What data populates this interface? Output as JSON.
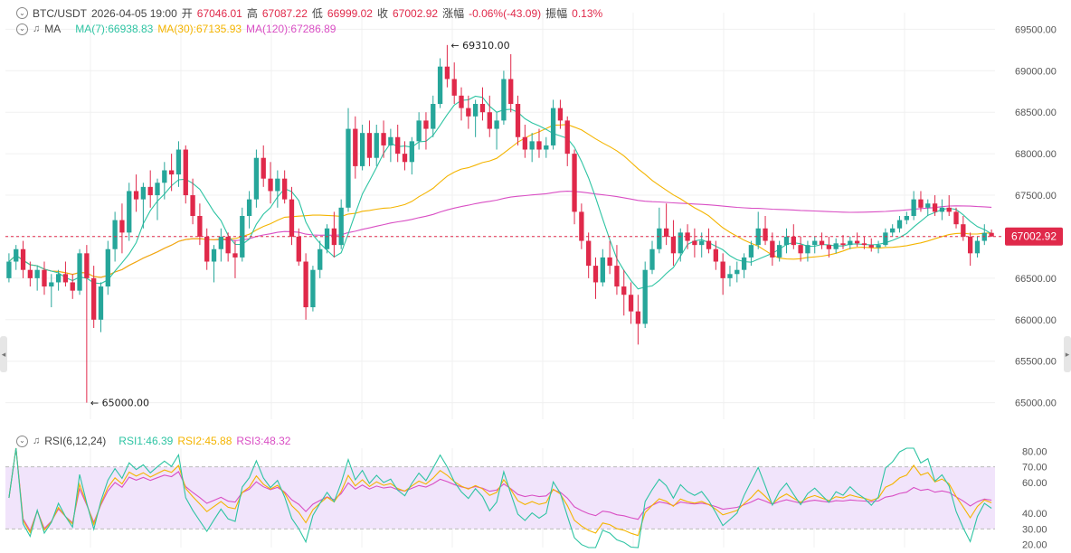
{
  "header": {
    "pair": "BTC/USDT",
    "datetime": "2026-04-05 19:00",
    "open_label": "开",
    "open": "67046.01",
    "high_label": "高",
    "high": "67087.22",
    "low_label": "低",
    "low": "66999.02",
    "close_label": "收",
    "close": "67002.92",
    "change_label": "涨幅",
    "change": "-0.06%(-43.09)",
    "amplitude_label": "振幅",
    "amplitude": "0.13%"
  },
  "ma_legend": {
    "name": "MA",
    "items": [
      {
        "label": "MA(7):66938.83",
        "color": "#2ec4a3"
      },
      {
        "label": "MA(30):67135.93",
        "color": "#f4b400"
      },
      {
        "label": "MA(120):67286.89",
        "color": "#d94fc4"
      }
    ]
  },
  "rsi_legend": {
    "name": "RSI(6,12,24)",
    "items": [
      {
        "label": "RSI1:46.39",
        "color": "#2ec4a3"
      },
      {
        "label": "RSI2:45.88",
        "color": "#f4b400"
      },
      {
        "label": "RSI3:48.32",
        "color": "#d94fc4"
      }
    ]
  },
  "colors": {
    "up": "#26a69a",
    "down": "#e0294a",
    "grid": "#f0f0f0",
    "rsi_band": "#f1e4fb"
  },
  "chart_data": [
    {
      "type": "candlestick",
      "title": "BTC/USDT",
      "ylim": [
        64800,
        69700
      ],
      "y_ticks": [
        "65000.00",
        "65500.00",
        "66000.00",
        "66500.00",
        "67000.00",
        "67500.00",
        "68000.00",
        "68500.00",
        "69000.00",
        "69500.00"
      ],
      "y_tick_values": [
        65000,
        65500,
        66000,
        66500,
        67000,
        67500,
        68000,
        68500,
        69000,
        69500
      ],
      "last_price": 67002.92,
      "last_price_label": "67002.92",
      "annotations": [
        {
          "label": "69310.00",
          "value": 69310,
          "index": 62
        },
        {
          "label": "65000.00",
          "value": 65000,
          "index": 11
        }
      ],
      "candles": [
        [
          66500,
          66800,
          66450,
          66700
        ],
        [
          66700,
          66900,
          66600,
          66850
        ],
        [
          66850,
          66950,
          66500,
          66600
        ],
        [
          66600,
          66700,
          66400,
          66500
        ],
        [
          66500,
          66650,
          66350,
          66600
        ],
        [
          66600,
          66700,
          66300,
          66400
        ],
        [
          66400,
          66550,
          66150,
          66450
        ],
        [
          66450,
          66600,
          66350,
          66550
        ],
        [
          66550,
          66700,
          66400,
          66450
        ],
        [
          66450,
          66550,
          66250,
          66350
        ],
        [
          66350,
          66850,
          66300,
          66800
        ],
        [
          66800,
          66900,
          65000,
          66500
        ],
        [
          66500,
          66650,
          65900,
          66000
        ],
        [
          66000,
          66450,
          65850,
          66400
        ],
        [
          66400,
          66950,
          66300,
          66850
        ],
        [
          66850,
          67300,
          66700,
          67200
        ],
        [
          67200,
          67400,
          66800,
          67050
        ],
        [
          67050,
          67650,
          66950,
          67550
        ],
        [
          67550,
          67750,
          67300,
          67450
        ],
        [
          67450,
          67650,
          67100,
          67600
        ],
        [
          67600,
          67800,
          67350,
          67500
        ],
        [
          67500,
          67700,
          67200,
          67650
        ],
        [
          67650,
          67900,
          67450,
          67800
        ],
        [
          67800,
          68000,
          67550,
          67750
        ],
        [
          67750,
          68150,
          67600,
          68050
        ],
        [
          68050,
          68100,
          67400,
          67500
        ],
        [
          67500,
          67700,
          67150,
          67250
        ],
        [
          67250,
          67400,
          66900,
          67000
        ],
        [
          67000,
          67100,
          66600,
          66700
        ],
        [
          66700,
          66900,
          66450,
          66850
        ],
        [
          66850,
          67100,
          66700,
          67000
        ],
        [
          67000,
          67050,
          66700,
          66800
        ],
        [
          66800,
          66950,
          66500,
          66750
        ],
        [
          66750,
          67350,
          66700,
          67250
        ],
        [
          67250,
          67550,
          67100,
          67450
        ],
        [
          67450,
          68050,
          67350,
          67950
        ],
        [
          67950,
          68100,
          67600,
          67700
        ],
        [
          67700,
          67900,
          67400,
          67550
        ],
        [
          67550,
          67800,
          67350,
          67700
        ],
        [
          67700,
          67800,
          67400,
          67450
        ],
        [
          67450,
          67600,
          66900,
          67000
        ],
        [
          67000,
          67100,
          66650,
          66700
        ],
        [
          66700,
          66800,
          66000,
          66150
        ],
        [
          66150,
          66650,
          66100,
          66600
        ],
        [
          66600,
          66950,
          66500,
          66850
        ],
        [
          66850,
          67150,
          66800,
          67100
        ],
        [
          67100,
          67300,
          66750,
          66900
        ],
        [
          66900,
          67450,
          66850,
          67350
        ],
        [
          67350,
          68550,
          67300,
          68300
        ],
        [
          68300,
          68450,
          67700,
          67850
        ],
        [
          67850,
          68350,
          67800,
          68250
        ],
        [
          68250,
          68400,
          67850,
          67950
        ],
        [
          67950,
          68350,
          67850,
          68250
        ],
        [
          68250,
          68400,
          67950,
          68100
        ],
        [
          68100,
          68300,
          67900,
          68200
        ],
        [
          68200,
          68350,
          67900,
          68000
        ],
        [
          68000,
          68150,
          67800,
          67900
        ],
        [
          67900,
          68200,
          67750,
          68150
        ],
        [
          68150,
          68500,
          68050,
          68400
        ],
        [
          68400,
          68500,
          68050,
          68300
        ],
        [
          68300,
          68700,
          68200,
          68600
        ],
        [
          68600,
          69150,
          68550,
          69050
        ],
        [
          69050,
          69310,
          68800,
          68900
        ],
        [
          68900,
          69100,
          68600,
          68700
        ],
        [
          68700,
          68800,
          68400,
          68550
        ],
        [
          68550,
          68700,
          68300,
          68450
        ],
        [
          68450,
          68650,
          68200,
          68600
        ],
        [
          68600,
          68800,
          68400,
          68500
        ],
        [
          68500,
          68700,
          68200,
          68300
        ],
        [
          68300,
          68500,
          68050,
          68400
        ],
        [
          68400,
          69000,
          68350,
          68900
        ],
        [
          68900,
          69200,
          68500,
          68600
        ],
        [
          68600,
          68700,
          68100,
          68200
        ],
        [
          68200,
          68350,
          67950,
          68050
        ],
        [
          68050,
          68250,
          67900,
          68150
        ],
        [
          68150,
          68300,
          67950,
          68050
        ],
        [
          68050,
          68200,
          67950,
          68100
        ],
        [
          68100,
          68650,
          68050,
          68550
        ],
        [
          68550,
          68650,
          68300,
          68400
        ],
        [
          68400,
          68450,
          67850,
          68000
        ],
        [
          68000,
          68050,
          67150,
          67300
        ],
        [
          67300,
          67400,
          66850,
          66950
        ],
        [
          66950,
          67050,
          66500,
          66650
        ],
        [
          66650,
          66750,
          66250,
          66450
        ],
        [
          66450,
          66850,
          66400,
          66750
        ],
        [
          66750,
          66950,
          66550,
          66650
        ],
        [
          66650,
          66900,
          66300,
          66400
        ],
        [
          66400,
          66600,
          66050,
          66300
        ],
        [
          66300,
          66450,
          65950,
          66100
        ],
        [
          66100,
          66300,
          65700,
          65950
        ],
        [
          65950,
          66700,
          65900,
          66600
        ],
        [
          66600,
          66950,
          66550,
          66850
        ],
        [
          66850,
          67350,
          66800,
          67100
        ],
        [
          67100,
          67400,
          66900,
          67000
        ],
        [
          67000,
          67200,
          66650,
          66800
        ],
        [
          66800,
          67100,
          66700,
          67050
        ],
        [
          67050,
          67150,
          66850,
          66950
        ],
        [
          66950,
          67100,
          66750,
          66900
        ],
        [
          66900,
          67050,
          66750,
          66950
        ],
        [
          66950,
          67100,
          66800,
          66850
        ],
        [
          66850,
          66950,
          66600,
          66700
        ],
        [
          66700,
          66800,
          66300,
          66500
        ],
        [
          66500,
          66650,
          66400,
          66550
        ],
        [
          66550,
          66700,
          66450,
          66600
        ],
        [
          66600,
          66800,
          66500,
          66750
        ],
        [
          66750,
          66950,
          66650,
          66900
        ],
        [
          66900,
          67300,
          66850,
          67100
        ],
        [
          67100,
          67250,
          66900,
          66950
        ],
        [
          66950,
          67050,
          66650,
          66750
        ],
        [
          66750,
          66950,
          66700,
          66900
        ],
        [
          66900,
          67100,
          66800,
          67000
        ],
        [
          67000,
          67150,
          66850,
          66900
        ],
        [
          66900,
          67000,
          66700,
          66800
        ],
        [
          66800,
          66950,
          66700,
          66900
        ],
        [
          66900,
          67000,
          66800,
          66950
        ],
        [
          66950,
          67050,
          66850,
          66900
        ],
        [
          66900,
          67000,
          66750,
          66850
        ],
        [
          66850,
          66980,
          66800,
          66920
        ],
        [
          66920,
          67020,
          66850,
          66900
        ],
        [
          66900,
          67000,
          66850,
          66950
        ],
        [
          66950,
          67050,
          66880,
          66920
        ],
        [
          66920,
          67000,
          66850,
          66900
        ],
        [
          66900,
          66980,
          66820,
          66870
        ],
        [
          66870,
          66950,
          66800,
          66900
        ],
        [
          66900,
          67100,
          66880,
          67050
        ],
        [
          67050,
          67150,
          67000,
          67100
        ],
        [
          67100,
          67250,
          67050,
          67200
        ],
        [
          67200,
          67300,
          67150,
          67250
        ],
        [
          67250,
          67550,
          67200,
          67450
        ],
        [
          67450,
          67550,
          67300,
          67350
        ],
        [
          67350,
          67450,
          67250,
          67400
        ],
        [
          67400,
          67500,
          67250,
          67300
        ],
        [
          67300,
          67450,
          67200,
          67350
        ],
        [
          67350,
          67500,
          67250,
          67300
        ],
        [
          67300,
          67350,
          67100,
          67150
        ],
        [
          67150,
          67250,
          66950,
          67000
        ],
        [
          67000,
          67050,
          66650,
          66800
        ],
        [
          66800,
          67000,
          66750,
          66950
        ],
        [
          66950,
          67150,
          66900,
          67046
        ],
        [
          67046,
          67087,
          66999,
          67003
        ]
      ]
    },
    {
      "type": "line",
      "title": "RSI(6,12,24)",
      "ylim": [
        18,
        82
      ],
      "y_ticks": [
        "20.00",
        "30.00",
        "40.00",
        "60.00",
        "70.00",
        "80.00"
      ],
      "y_tick_values": [
        20,
        30,
        40,
        60,
        70,
        80
      ],
      "band": [
        30,
        70
      ],
      "series": [
        {
          "name": "RSI1",
          "color": "#2ec4a3"
        },
        {
          "name": "RSI2",
          "color": "#f4b400"
        },
        {
          "name": "RSI3",
          "color": "#d94fc4"
        }
      ]
    }
  ]
}
